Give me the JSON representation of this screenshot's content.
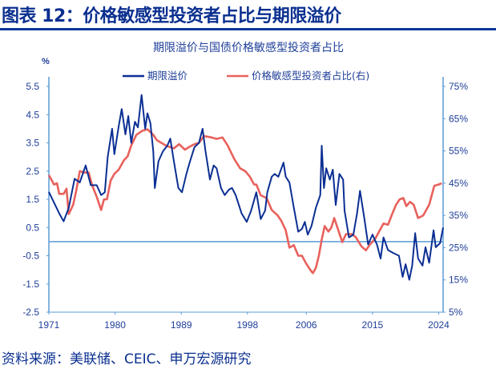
{
  "figure_title": "图表 12：价格敏感型投资者占比与期限溢价",
  "source": "资料来源：美联储、CEIC、申万宏源研究",
  "chart_data": {
    "type": "line",
    "title": "期限溢价与国债价格敏感型投资者占比",
    "y_left_unit": "%",
    "x_ticks": [
      "1971",
      "1980",
      "1989",
      "1998",
      "2006",
      "2015",
      "2024"
    ],
    "x_tick_values": [
      1971,
      1980,
      1989,
      1998,
      2006,
      2015,
      2024
    ],
    "xlim": [
      1971,
      2024.6
    ],
    "y_left_ticks": [
      "5.5",
      "4.5",
      "3.5",
      "2.5",
      "1.5",
      "0.5",
      "-0.5",
      "-1.5",
      "-2.5"
    ],
    "ylim_left": [
      -2.5,
      5.5
    ],
    "y_right_ticks": [
      "75%",
      "65%",
      "55%",
      "45%",
      "35%",
      "25%",
      "15%",
      "5%"
    ],
    "ylim_right": [
      5,
      75
    ],
    "reference_line_left": 0,
    "grid": false,
    "legend_position": "top",
    "colors": {
      "term_premium": "#0b2f93",
      "share": "#e8615c",
      "axis": "#5b9bd5"
    },
    "series": [
      {
        "name": "期限溢价",
        "axis": "left",
        "points": [
          [
            1971.0,
            1.76
          ],
          [
            1972.4,
            1.0
          ],
          [
            1973.0,
            0.72
          ],
          [
            1973.7,
            1.2
          ],
          [
            1974.5,
            2.23
          ],
          [
            1975.2,
            2.1
          ],
          [
            1976.0,
            2.7
          ],
          [
            1976.7,
            2.0
          ],
          [
            1977.5,
            2.0
          ],
          [
            1978.1,
            1.65
          ],
          [
            1978.6,
            1.75
          ],
          [
            1979.0,
            3.0
          ],
          [
            1979.6,
            4.0
          ],
          [
            1979.9,
            3.1
          ],
          [
            1980.5,
            4.1
          ],
          [
            1980.9,
            4.7
          ],
          [
            1981.4,
            3.8
          ],
          [
            1981.8,
            4.45
          ],
          [
            1982.2,
            3.5
          ],
          [
            1982.7,
            4.25
          ],
          [
            1983.1,
            4.05
          ],
          [
            1983.6,
            5.2
          ],
          [
            1984.1,
            4.0
          ],
          [
            1984.4,
            4.55
          ],
          [
            1984.8,
            4.2
          ],
          [
            1985.2,
            3.2
          ],
          [
            1985.4,
            1.9
          ],
          [
            1985.9,
            2.85
          ],
          [
            1986.5,
            3.2
          ],
          [
            1987.1,
            3.4
          ],
          [
            1987.5,
            3.65
          ],
          [
            1988.0,
            2.85
          ],
          [
            1988.6,
            1.9
          ],
          [
            1989.1,
            1.75
          ],
          [
            1989.7,
            2.4
          ],
          [
            1990.2,
            2.85
          ],
          [
            1990.8,
            3.35
          ],
          [
            1991.4,
            3.5
          ],
          [
            1991.9,
            4.0
          ],
          [
            1992.3,
            3.2
          ],
          [
            1992.9,
            2.2
          ],
          [
            1993.4,
            2.7
          ],
          [
            1993.8,
            2.6
          ],
          [
            1994.4,
            1.9
          ],
          [
            1994.9,
            1.65
          ],
          [
            1995.5,
            1.85
          ],
          [
            1995.9,
            1.9
          ],
          [
            1996.4,
            1.65
          ],
          [
            1997.2,
            1.0
          ],
          [
            1997.9,
            0.7
          ],
          [
            1998.5,
            1.1
          ],
          [
            1999.2,
            1.75
          ],
          [
            1999.8,
            0.8
          ],
          [
            2000.4,
            1.1
          ],
          [
            2000.7,
            1.75
          ],
          [
            2001.3,
            2.3
          ],
          [
            2001.7,
            2.4
          ],
          [
            2002.2,
            2.3
          ],
          [
            2002.9,
            2.8
          ],
          [
            2003.2,
            2.3
          ],
          [
            2003.7,
            2.1
          ],
          [
            2004.3,
            1.2
          ],
          [
            2004.9,
            0.35
          ],
          [
            2005.4,
            0.45
          ],
          [
            2005.8,
            0.7
          ],
          [
            2006.2,
            0.25
          ],
          [
            2006.7,
            0.55
          ],
          [
            2007.3,
            1.2
          ],
          [
            2007.9,
            1.65
          ],
          [
            2008.1,
            3.4
          ],
          [
            2008.4,
            1.9
          ],
          [
            2008.7,
            2.6
          ],
          [
            2009.2,
            2.2
          ],
          [
            2009.6,
            2.55
          ],
          [
            2010.0,
            1.3
          ],
          [
            2010.5,
            2.4
          ],
          [
            2011.0,
            2.2
          ],
          [
            2011.2,
            1.1
          ],
          [
            2011.8,
            0.15
          ],
          [
            2012.4,
            0.25
          ],
          [
            2012.9,
            1.0
          ],
          [
            2013.3,
            1.8
          ],
          [
            2013.9,
            0.8
          ],
          [
            2014.4,
            -0.1
          ],
          [
            2015.0,
            0.25
          ],
          [
            2015.6,
            -0.1
          ],
          [
            2016.1,
            -0.6
          ],
          [
            2016.5,
            0.15
          ],
          [
            2017.1,
            -0.3
          ],
          [
            2017.8,
            -0.4
          ],
          [
            2018.6,
            -0.5
          ],
          [
            2019.1,
            -1.25
          ],
          [
            2019.5,
            -0.8
          ],
          [
            2020.0,
            -1.35
          ],
          [
            2020.4,
            -0.85
          ],
          [
            2020.8,
            0.3
          ],
          [
            2021.2,
            -0.6
          ],
          [
            2021.8,
            -0.85
          ],
          [
            2022.2,
            -0.2
          ],
          [
            2022.7,
            -0.75
          ],
          [
            2023.3,
            0.4
          ],
          [
            2023.6,
            -0.2
          ],
          [
            2024.2,
            -0.05
          ],
          [
            2024.6,
            0.5
          ]
        ]
      },
      {
        "name": "价格敏感型投资者占比(右)",
        "axis": "right",
        "points": [
          [
            1971.0,
            47.5
          ],
          [
            1971.7,
            44.6
          ],
          [
            1972.1,
            45
          ],
          [
            1972.4,
            41.7
          ],
          [
            1973.0,
            41.7
          ],
          [
            1973.4,
            43.3
          ],
          [
            1973.7,
            35.4
          ],
          [
            1974.3,
            38.3
          ],
          [
            1974.7,
            42.5
          ],
          [
            1975.2,
            48.75
          ],
          [
            1975.8,
            48.3
          ],
          [
            1976.4,
            48.3
          ],
          [
            1976.9,
            44.2
          ],
          [
            1977.5,
            40.8
          ],
          [
            1978.1,
            36.7
          ],
          [
            1978.5,
            40
          ],
          [
            1978.9,
            40
          ],
          [
            1979.4,
            45.8
          ],
          [
            1979.9,
            47.9
          ],
          [
            1980.5,
            49.2
          ],
          [
            1981.2,
            52.1
          ],
          [
            1981.7,
            53.3
          ],
          [
            1982.2,
            56.7
          ],
          [
            1982.9,
            60
          ],
          [
            1983.7,
            61.25
          ],
          [
            1984.4,
            61.7
          ],
          [
            1985.2,
            60
          ],
          [
            1985.7,
            58.3
          ],
          [
            1986.3,
            57.5
          ],
          [
            1986.9,
            56.7
          ],
          [
            1987.4,
            56.25
          ],
          [
            1988.0,
            55.8
          ],
          [
            1988.7,
            57.1
          ],
          [
            1989.5,
            55.4
          ],
          [
            1990.1,
            56.25
          ],
          [
            1990.8,
            57.1
          ],
          [
            1991.4,
            57.5
          ],
          [
            1992.1,
            59.6
          ],
          [
            1993.1,
            59.2
          ],
          [
            1993.8,
            58.75
          ],
          [
            1994.6,
            59.2
          ],
          [
            1995.3,
            56.7
          ],
          [
            1996.2,
            52.5
          ],
          [
            1997.0,
            49.6
          ],
          [
            1997.7,
            48.75
          ],
          [
            1998.3,
            47.1
          ],
          [
            1998.9,
            44.6
          ],
          [
            1999.2,
            44.6
          ],
          [
            1999.8,
            41.25
          ],
          [
            2000.6,
            40.4
          ],
          [
            2001.3,
            36.7
          ],
          [
            2002.1,
            35
          ],
          [
            2002.6,
            33.3
          ],
          [
            2003.2,
            30.4
          ],
          [
            2003.7,
            25
          ],
          [
            2004.3,
            25.8
          ],
          [
            2004.9,
            22.5
          ],
          [
            2005.4,
            22.5
          ],
          [
            2006.0,
            20
          ],
          [
            2006.6,
            17.9
          ],
          [
            2006.9,
            17.1
          ],
          [
            2007.3,
            18.75
          ],
          [
            2007.7,
            22.5
          ],
          [
            2008.1,
            27.5
          ],
          [
            2008.5,
            31.7
          ],
          [
            2009.0,
            30
          ],
          [
            2009.4,
            31.25
          ],
          [
            2009.8,
            34.2
          ],
          [
            2010.3,
            30.8
          ],
          [
            2010.9,
            26.7
          ],
          [
            2011.4,
            29.2
          ],
          [
            2012.2,
            29.2
          ],
          [
            2012.7,
            28.3
          ],
          [
            2013.5,
            25.4
          ],
          [
            2014.1,
            24.2
          ],
          [
            2014.6,
            25.8
          ],
          [
            2015.4,
            27.9
          ],
          [
            2015.9,
            30
          ],
          [
            2016.5,
            32.5
          ],
          [
            2017.1,
            32.1
          ],
          [
            2017.6,
            35
          ],
          [
            2018.2,
            38.3
          ],
          [
            2018.7,
            40
          ],
          [
            2019.2,
            40.4
          ],
          [
            2019.6,
            37.9
          ],
          [
            2020.1,
            39.2
          ],
          [
            2020.6,
            38.3
          ],
          [
            2021.2,
            34.2
          ],
          [
            2021.9,
            35
          ],
          [
            2022.7,
            38.3
          ],
          [
            2023.4,
            44.2
          ],
          [
            2024.0,
            44.6
          ],
          [
            2024.4,
            45
          ]
        ]
      }
    ]
  }
}
